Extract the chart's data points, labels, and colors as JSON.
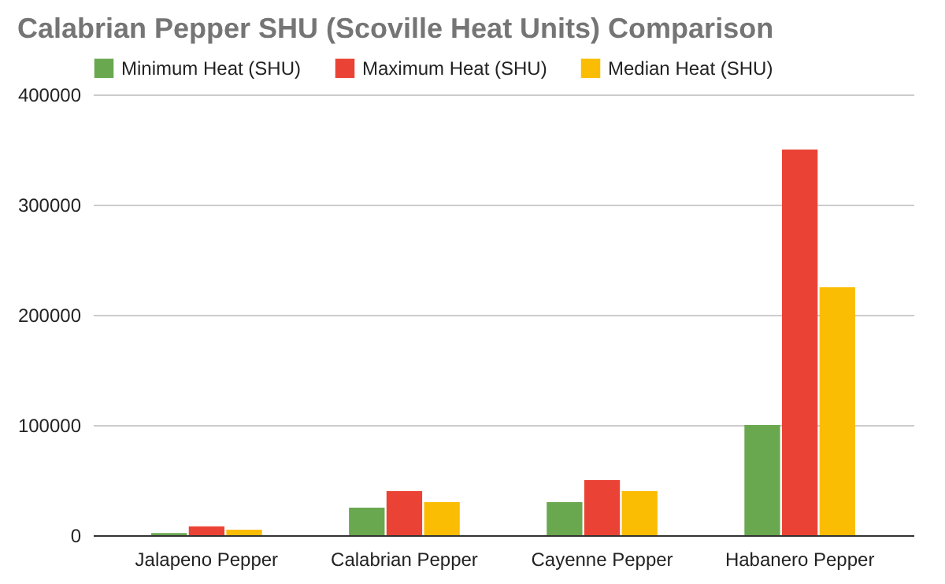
{
  "chart_data": {
    "type": "bar",
    "title": "Calabrian Pepper SHU (Scoville Heat Units) Comparison",
    "categories": [
      "Jalapeno Pepper",
      "Calabrian Pepper",
      "Cayenne Pepper",
      "Habanero Pepper"
    ],
    "series": [
      {
        "name": "Minimum Heat (SHU)",
        "color": "#6aa84f",
        "values": [
          2000,
          25000,
          30000,
          100000
        ]
      },
      {
        "name": "Maximum Heat (SHU)",
        "color": "#ea4335",
        "values": [
          8000,
          40000,
          50000,
          350000
        ]
      },
      {
        "name": "Median Heat (SHU)",
        "color": "#fbbc04",
        "values": [
          5000,
          30000,
          40000,
          225000
        ]
      }
    ],
    "ylim": [
      0,
      400000
    ],
    "yticks": [
      0,
      100000,
      200000,
      300000,
      400000
    ],
    "grid": "y",
    "legend": "top"
  }
}
